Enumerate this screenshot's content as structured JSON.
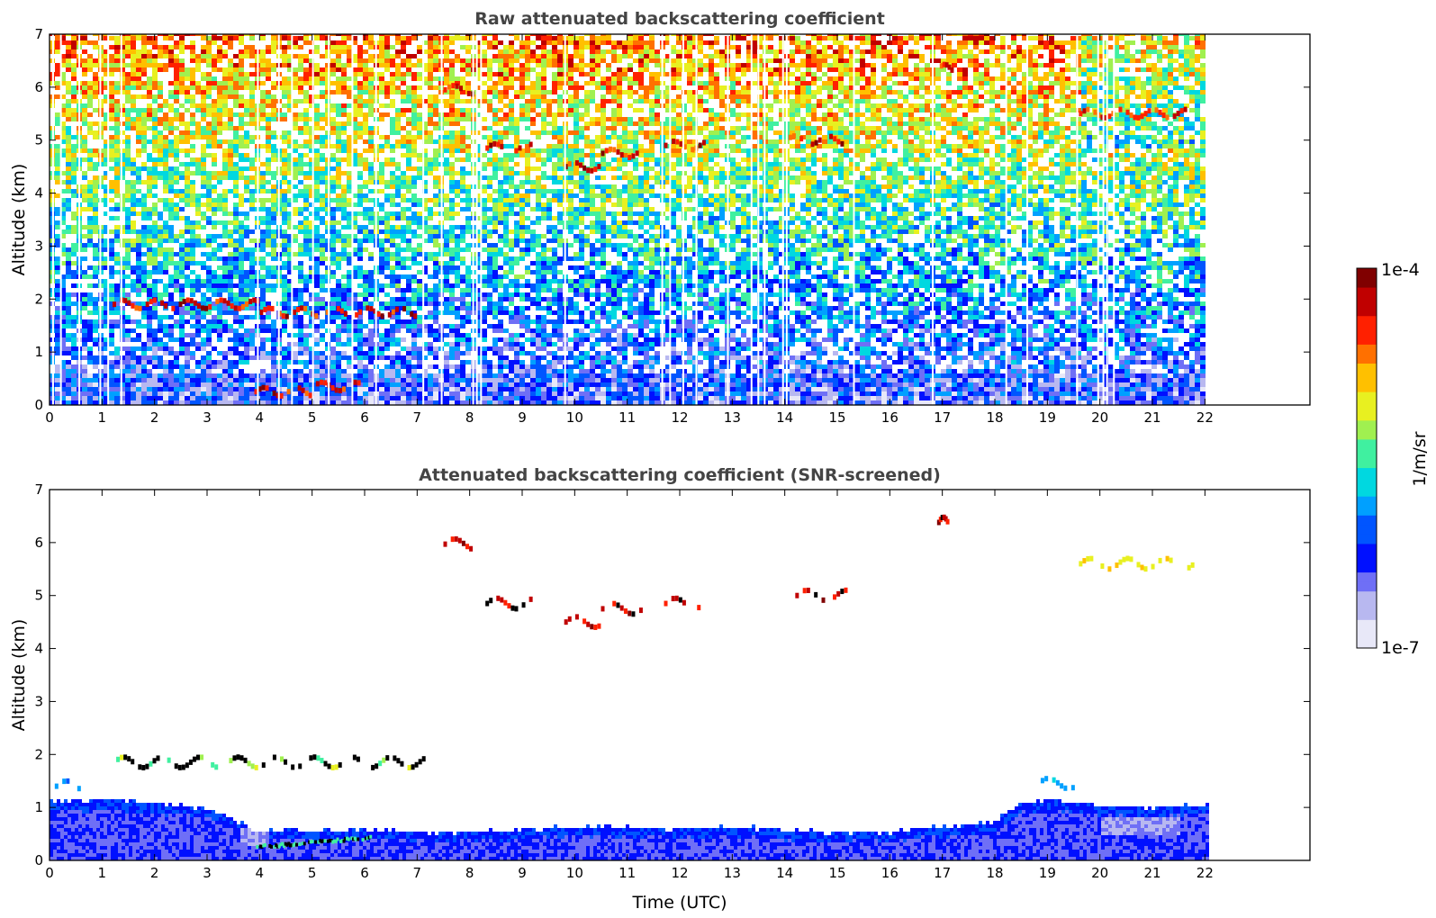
{
  "chart_data": [
    {
      "type": "heatmap",
      "title": "Raw attenuated backscattering coefficient",
      "xlabel": "",
      "ylabel": "Altitude (km)",
      "xlim": [
        0,
        24
      ],
      "ylim": [
        0,
        7
      ],
      "xticks": [
        "0",
        "1",
        "2",
        "3",
        "4",
        "5",
        "6",
        "7",
        "8",
        "9",
        "10",
        "11",
        "12",
        "13",
        "14",
        "15",
        "16",
        "17",
        "18",
        "19",
        "20",
        "21",
        "22"
      ],
      "yticks": [
        "0",
        "1",
        "2",
        "3",
        "4",
        "5",
        "6",
        "7"
      ],
      "data_extent_hours": [
        0,
        22.1
      ],
      "gap_times": [
        0.05,
        0.2,
        0.55,
        0.95,
        1.1,
        1.35,
        3.95,
        4.35,
        4.6,
        5.0,
        5.3,
        5.75,
        6.2,
        7.1,
        7.45,
        8.05,
        8.12,
        8.2,
        9.8,
        11.65,
        11.8,
        12.05,
        12.3,
        12.9,
        13.35,
        13.48,
        13.6,
        13.95,
        14.02,
        15.3,
        16.8,
        18.2,
        18.6,
        19.55,
        19.95,
        20.05,
        20.12,
        20.25
      ],
      "features": [
        {
          "kind": "cloud",
          "t0": 3.9,
          "t1": 5.0,
          "alt": 0.25,
          "intensity": 1.0
        },
        {
          "kind": "cloud",
          "t0": 5.0,
          "t1": 6.0,
          "alt": 0.35,
          "intensity": 0.6
        },
        {
          "kind": "aerosol",
          "t0": 1.2,
          "t1": 4.0,
          "alt": 1.9,
          "intensity": 0.9
        },
        {
          "kind": "aerosol",
          "t0": 4.0,
          "t1": 7.0,
          "alt": 1.75,
          "intensity": 0.9
        },
        {
          "kind": "cloud",
          "t0": 7.5,
          "t1": 8.1,
          "alt": 5.95,
          "intensity": 1.0
        },
        {
          "kind": "cloud",
          "t0": 8.3,
          "t1": 9.2,
          "alt": 4.85,
          "intensity": 1.0
        },
        {
          "kind": "cloud",
          "t0": 9.8,
          "t1": 10.5,
          "alt": 4.5,
          "intensity": 1.0
        },
        {
          "kind": "cloud",
          "t0": 10.5,
          "t1": 11.3,
          "alt": 4.75,
          "intensity": 1.0
        },
        {
          "kind": "cloud",
          "t0": 11.7,
          "t1": 12.5,
          "alt": 4.9,
          "intensity": 0.9
        },
        {
          "kind": "cloud",
          "t0": 14.0,
          "t1": 15.2,
          "alt": 5.0,
          "intensity": 0.9
        },
        {
          "kind": "cloud",
          "t0": 16.9,
          "t1": 17.2,
          "alt": 6.35,
          "intensity": 0.8
        },
        {
          "kind": "cloud",
          "t0": 19.6,
          "t1": 21.8,
          "alt": 5.5,
          "intensity": 0.55
        }
      ]
    },
    {
      "type": "heatmap",
      "title": "Attenuated backscattering coefficient (SNR-screened)",
      "xlabel": "Time (UTC)",
      "ylabel": "Altitude (km)",
      "xlim": [
        0,
        24
      ],
      "ylim": [
        0,
        7
      ],
      "xticks": [
        "0",
        "1",
        "2",
        "3",
        "4",
        "5",
        "6",
        "7",
        "8",
        "9",
        "10",
        "11",
        "12",
        "13",
        "14",
        "15",
        "16",
        "17",
        "18",
        "19",
        "20",
        "21",
        "22"
      ],
      "yticks": [
        "0",
        "1",
        "2",
        "3",
        "4",
        "5",
        "6",
        "7"
      ],
      "data_extent_hours": [
        0,
        22.1
      ],
      "boundary_layer_top_km": [
        [
          0,
          1.1
        ],
        [
          1,
          1.1
        ],
        [
          2,
          1.05
        ],
        [
          3,
          0.95
        ],
        [
          3.9,
          0.55
        ],
        [
          4.5,
          0.55
        ],
        [
          5,
          0.5
        ],
        [
          6,
          0.55
        ],
        [
          7,
          0.5
        ],
        [
          8,
          0.5
        ],
        [
          9,
          0.55
        ],
        [
          10,
          0.6
        ],
        [
          11,
          0.6
        ],
        [
          12,
          0.55
        ],
        [
          13,
          0.6
        ],
        [
          14,
          0.55
        ],
        [
          15,
          0.5
        ],
        [
          16,
          0.5
        ],
        [
          17,
          0.6
        ],
        [
          18,
          0.7
        ],
        [
          18.5,
          1.05
        ],
        [
          19,
          1.1
        ],
        [
          19.5,
          1.05
        ],
        [
          20,
          1.0
        ],
        [
          21,
          0.95
        ],
        [
          22,
          1.05
        ]
      ],
      "features": [
        {
          "kind": "cloud",
          "t0": 7.5,
          "t1": 8.2,
          "alt": 5.97
        },
        {
          "kind": "cloud",
          "t0": 8.3,
          "t1": 9.2,
          "alt": 4.85
        },
        {
          "kind": "cloud",
          "t0": 9.8,
          "t1": 10.5,
          "alt": 4.5
        },
        {
          "kind": "cloud",
          "t0": 10.5,
          "t1": 11.3,
          "alt": 4.75
        },
        {
          "kind": "cloud",
          "t0": 11.7,
          "t1": 12.4,
          "alt": 4.85
        },
        {
          "kind": "cloud",
          "t0": 14.2,
          "t1": 15.2,
          "alt": 5.0
        },
        {
          "kind": "cloud",
          "t0": 16.9,
          "t1": 17.1,
          "alt": 6.38
        },
        {
          "kind": "aerosol",
          "t0": 19.6,
          "t1": 21.8,
          "alt": 5.6
        },
        {
          "kind": "aerosol",
          "t0": 1.2,
          "t1": 7.3,
          "alt": 1.85
        },
        {
          "kind": "aerosol",
          "t0": 0.1,
          "t1": 0.6,
          "alt": 1.4
        },
        {
          "kind": "aerosol",
          "t0": 18.8,
          "t1": 19.6,
          "alt": 1.45
        }
      ]
    }
  ],
  "colorbar": {
    "label": "1/m/sr",
    "max_label": "1e-4",
    "min_label": "1e-7",
    "scale": "log",
    "colormap": [
      "#e8e8f8",
      "#b8b8f0",
      "#6f6ff6",
      "#0010ff",
      "#0055ff",
      "#00a0ff",
      "#00d8e0",
      "#40f0a0",
      "#a0f050",
      "#e8f020",
      "#ffc000",
      "#ff7000",
      "#ff2000",
      "#c00000",
      "#800000"
    ]
  }
}
